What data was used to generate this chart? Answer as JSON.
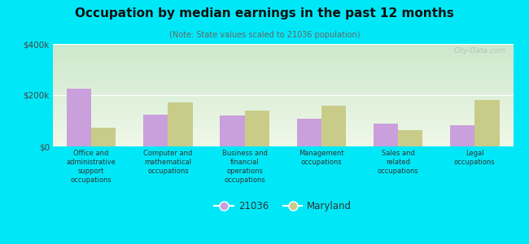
{
  "title": "Occupation by median earnings in the past 12 months",
  "subtitle": "(Note: State values scaled to 21036 population)",
  "categories": [
    "Office and\nadministrative\nsupport\noccupations",
    "Computer and\nmathematical\noccupations",
    "Business and\nfinancial\noperations\noccupations",
    "Management\noccupations",
    "Sales and\nrelated\noccupations",
    "Legal\noccupations"
  ],
  "values_21036": [
    225000,
    125000,
    120000,
    108000,
    88000,
    83000
  ],
  "values_maryland": [
    72000,
    172000,
    140000,
    158000,
    62000,
    182000
  ],
  "color_21036": "#c9a0dc",
  "color_maryland": "#c8cc88",
  "background_outer": "#00e8f8",
  "ylim": [
    0,
    400000
  ],
  "yticks": [
    0,
    200000,
    400000
  ],
  "ytick_labels": [
    "$0",
    "$200k",
    "$400k"
  ],
  "legend_label_21036": "21036",
  "legend_label_maryland": "Maryland",
  "watermark": "City-Data.com",
  "bg_color_top": "#cce8cc",
  "bg_color_bottom": "#f0f8e8"
}
